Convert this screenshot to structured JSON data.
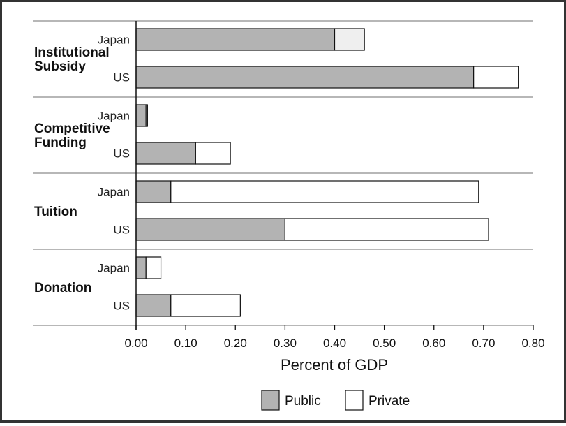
{
  "chart_data": {
    "type": "bar",
    "orientation": "horizontal",
    "stacked": true,
    "groups": [
      {
        "label": "Institutional Subsidy",
        "bars": [
          {
            "category": "Japan",
            "public": 0.4,
            "private": 0.06,
            "private_color": "#efefef"
          },
          {
            "category": "US",
            "public": 0.68,
            "private": 0.09,
            "private_color": "#ffffff"
          }
        ]
      },
      {
        "label": "Competitive Funding",
        "bars": [
          {
            "category": "Japan",
            "public": 0.02,
            "private": 0.003,
            "private_color": "#ffffff"
          },
          {
            "category": "US",
            "public": 0.12,
            "private": 0.07,
            "private_color": "#ffffff"
          }
        ]
      },
      {
        "label": "Tuition",
        "bars": [
          {
            "category": "Japan",
            "public": 0.07,
            "private": 0.62,
            "private_color": "#ffffff"
          },
          {
            "category": "US",
            "public": 0.3,
            "private": 0.41,
            "private_color": "#ffffff"
          }
        ]
      },
      {
        "label": "Donation",
        "bars": [
          {
            "category": "Japan",
            "public": 0.02,
            "private": 0.03,
            "private_color": "#ffffff"
          },
          {
            "category": "US",
            "public": 0.07,
            "private": 0.14,
            "private_color": "#ffffff"
          }
        ]
      }
    ],
    "series": [
      {
        "name": "Public",
        "color": "#b3b3b3"
      },
      {
        "name": "Private",
        "color": "#ffffff"
      }
    ],
    "xlabel": "Percent of GDP",
    "xlim": [
      0,
      0.8
    ],
    "xticks": [
      "0.00",
      "0.10",
      "0.20",
      "0.30",
      "0.40",
      "0.50",
      "0.60",
      "0.70",
      "0.80"
    ],
    "legend_position": "bottom"
  }
}
